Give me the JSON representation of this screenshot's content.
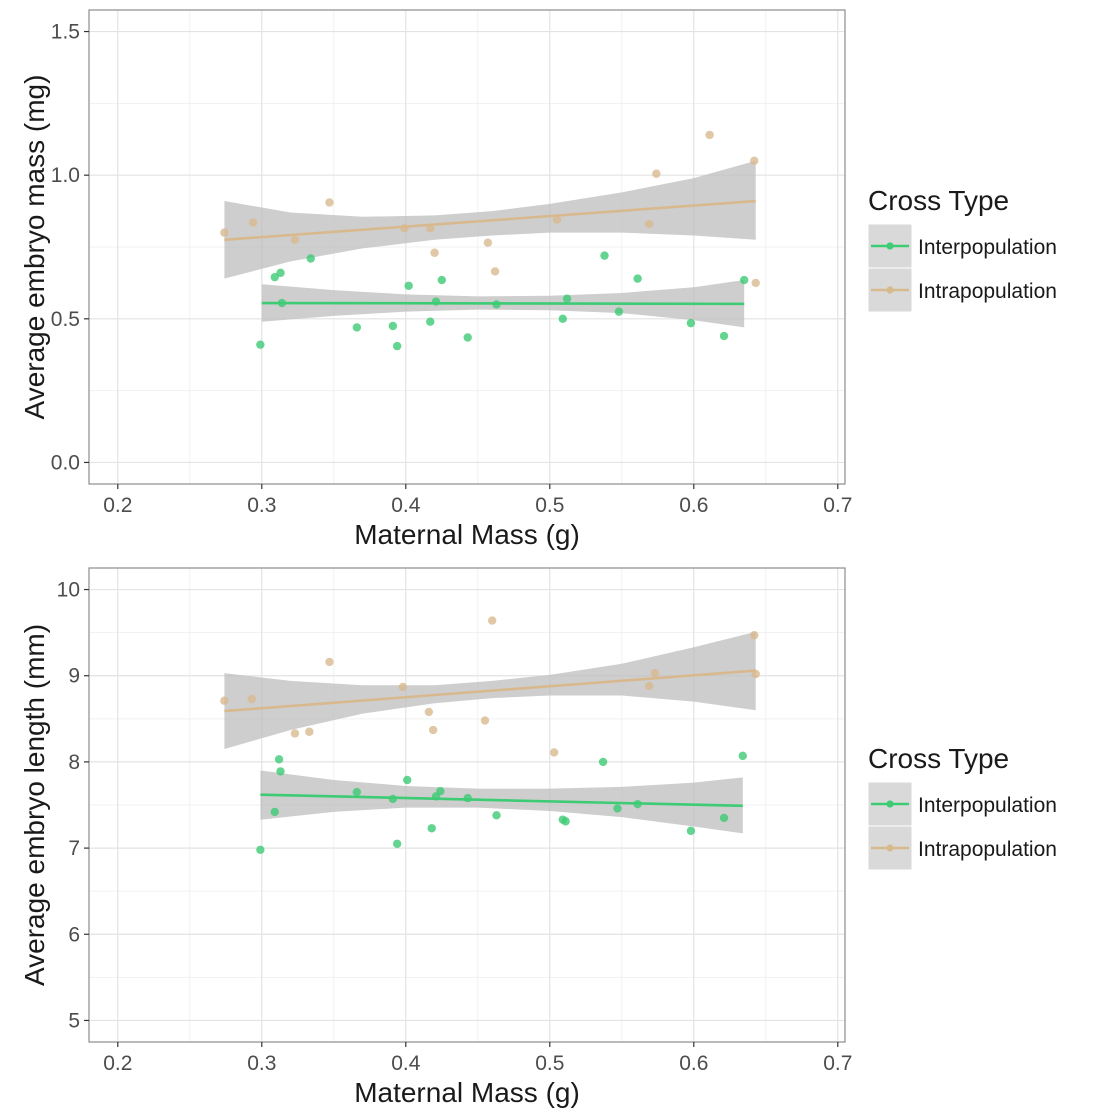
{
  "colors": {
    "interpopulation": "#3DCB74",
    "intrapopulation": "#D8B98E",
    "ribbon": "#BDBDBD",
    "grid_major": "#E3E3E3",
    "grid_minor": "#F1F1F1",
    "panel_border": "#8C8C8C",
    "axis_text": "#4D4D4D",
    "title_text": "#1A1A1A"
  },
  "chart_data": [
    {
      "type": "scatter",
      "xlabel": "Maternal Mass (g)",
      "ylabel": "Average embryo mass (mg)",
      "xlim": [
        0.18,
        0.705
      ],
      "ylim": [
        -0.075,
        1.575
      ],
      "xticks": [
        0.2,
        0.3,
        0.4,
        0.5,
        0.6,
        0.7
      ],
      "xtick_labels": [
        "0.2",
        "0.3",
        "0.4",
        "0.5",
        "0.6",
        "0.7"
      ],
      "yticks": [
        0.0,
        0.5,
        1.0,
        1.5
      ],
      "ytick_labels": [
        "0.0",
        "0.5",
        "1.0",
        "1.5"
      ],
      "grid": true,
      "legend": {
        "title": "Cross Type",
        "position": "right",
        "entries": [
          "Interpopulation",
          "Intrapopulation"
        ]
      },
      "series": [
        {
          "name": "Interpopulation",
          "color_key": "interpopulation",
          "points": [
            [
              0.299,
              0.41
            ],
            [
              0.309,
              0.645
            ],
            [
              0.313,
              0.66
            ],
            [
              0.314,
              0.555
            ],
            [
              0.334,
              0.71
            ],
            [
              0.366,
              0.47
            ],
            [
              0.391,
              0.475
            ],
            [
              0.394,
              0.405
            ],
            [
              0.402,
              0.615
            ],
            [
              0.417,
              0.49
            ],
            [
              0.421,
              0.56
            ],
            [
              0.425,
              0.635
            ],
            [
              0.443,
              0.435
            ],
            [
              0.463,
              0.55
            ],
            [
              0.509,
              0.5
            ],
            [
              0.512,
              0.57
            ],
            [
              0.538,
              0.72
            ],
            [
              0.548,
              0.525
            ],
            [
              0.561,
              0.64
            ],
            [
              0.598,
              0.485
            ],
            [
              0.621,
              0.44
            ],
            [
              0.635,
              0.635
            ]
          ],
          "fit": {
            "x": [
              0.3,
              0.635
            ],
            "y": [
              0.555,
              0.552
            ]
          },
          "ribbon": {
            "x": [
              0.3,
              0.35,
              0.4,
              0.45,
              0.5,
              0.55,
              0.6,
              0.635
            ],
            "lower": [
              0.49,
              0.51,
              0.525,
              0.532,
              0.53,
              0.52,
              0.495,
              0.47
            ],
            "upper": [
              0.62,
              0.6,
              0.585,
              0.578,
              0.58,
              0.59,
              0.61,
              0.635
            ]
          }
        },
        {
          "name": "Intrapopulation",
          "color_key": "intrapopulation",
          "points": [
            [
              0.274,
              0.8
            ],
            [
              0.294,
              0.835
            ],
            [
              0.323,
              0.775
            ],
            [
              0.347,
              0.905
            ],
            [
              0.399,
              0.815
            ],
            [
              0.417,
              0.815
            ],
            [
              0.42,
              0.73
            ],
            [
              0.457,
              0.765
            ],
            [
              0.462,
              0.665
            ],
            [
              0.505,
              0.845
            ],
            [
              0.569,
              0.83
            ],
            [
              0.574,
              1.005
            ],
            [
              0.611,
              1.14
            ],
            [
              0.642,
              1.05
            ],
            [
              0.643,
              0.625
            ]
          ],
          "fit": {
            "x": [
              0.274,
              0.643
            ],
            "y": [
              0.775,
              0.91
            ]
          },
          "ribbon": {
            "x": [
              0.274,
              0.32,
              0.37,
              0.42,
              0.46,
              0.5,
              0.55,
              0.6,
              0.643
            ],
            "lower": [
              0.64,
              0.7,
              0.745,
              0.775,
              0.79,
              0.8,
              0.8,
              0.79,
              0.775
            ],
            "upper": [
              0.91,
              0.87,
              0.855,
              0.86,
              0.875,
              0.9,
              0.94,
              0.99,
              1.05
            ]
          }
        }
      ]
    },
    {
      "type": "scatter",
      "xlabel": "Maternal Mass (g)",
      "ylabel": "Average embryo length (mm)",
      "xlim": [
        0.18,
        0.705
      ],
      "ylim": [
        4.75,
        10.25
      ],
      "xticks": [
        0.2,
        0.3,
        0.4,
        0.5,
        0.6,
        0.7
      ],
      "xtick_labels": [
        "0.2",
        "0.3",
        "0.4",
        "0.5",
        "0.6",
        "0.7"
      ],
      "yticks": [
        5,
        6,
        7,
        8,
        9,
        10
      ],
      "ytick_labels": [
        "5",
        "6",
        "7",
        "8",
        "9",
        "10"
      ],
      "grid": true,
      "legend": {
        "title": "Cross Type",
        "position": "right",
        "entries": [
          "Interpopulation",
          "Intrapopulation"
        ]
      },
      "series": [
        {
          "name": "Interpopulation",
          "color_key": "interpopulation",
          "points": [
            [
              0.299,
              6.98
            ],
            [
              0.309,
              7.42
            ],
            [
              0.312,
              8.03
            ],
            [
              0.313,
              7.89
            ],
            [
              0.366,
              7.65
            ],
            [
              0.391,
              7.57
            ],
            [
              0.394,
              7.05
            ],
            [
              0.401,
              7.79
            ],
            [
              0.418,
              7.23
            ],
            [
              0.421,
              7.6
            ],
            [
              0.424,
              7.66
            ],
            [
              0.443,
              7.58
            ],
            [
              0.463,
              7.38
            ],
            [
              0.509,
              7.33
            ],
            [
              0.511,
              7.31
            ],
            [
              0.537,
              8.0
            ],
            [
              0.547,
              7.46
            ],
            [
              0.561,
              7.51
            ],
            [
              0.598,
              7.2
            ],
            [
              0.621,
              7.35
            ],
            [
              0.634,
              8.07
            ]
          ],
          "fit": {
            "x": [
              0.299,
              0.634
            ],
            "y": [
              7.62,
              7.49
            ]
          },
          "ribbon": {
            "x": [
              0.299,
              0.35,
              0.4,
              0.45,
              0.5,
              0.55,
              0.6,
              0.634
            ],
            "lower": [
              7.33,
              7.42,
              7.47,
              7.47,
              7.43,
              7.36,
              7.25,
              7.17
            ],
            "upper": [
              7.9,
              7.79,
              7.72,
              7.69,
              7.69,
              7.71,
              7.76,
              7.82
            ]
          }
        },
        {
          "name": "Intrapopulation",
          "color_key": "intrapopulation",
          "points": [
            [
              0.274,
              8.71
            ],
            [
              0.293,
              8.73
            ],
            [
              0.323,
              8.33
            ],
            [
              0.333,
              8.35
            ],
            [
              0.347,
              9.16
            ],
            [
              0.398,
              8.87
            ],
            [
              0.416,
              8.58
            ],
            [
              0.419,
              8.37
            ],
            [
              0.455,
              8.48
            ],
            [
              0.46,
              9.64
            ],
            [
              0.503,
              8.11
            ],
            [
              0.569,
              8.88
            ],
            [
              0.573,
              9.03
            ],
            [
              0.642,
              9.47
            ],
            [
              0.643,
              9.02
            ]
          ],
          "fit": {
            "x": [
              0.274,
              0.643
            ],
            "y": [
              8.59,
              9.06
            ]
          },
          "ribbon": {
            "x": [
              0.274,
              0.32,
              0.37,
              0.42,
              0.46,
              0.5,
              0.55,
              0.6,
              0.643
            ],
            "lower": [
              8.15,
              8.37,
              8.56,
              8.68,
              8.74,
              8.77,
              8.77,
              8.7,
              8.6
            ],
            "upper": [
              9.03,
              8.94,
              8.89,
              8.89,
              8.94,
              9.01,
              9.14,
              9.33,
              9.51
            ]
          }
        }
      ]
    }
  ]
}
